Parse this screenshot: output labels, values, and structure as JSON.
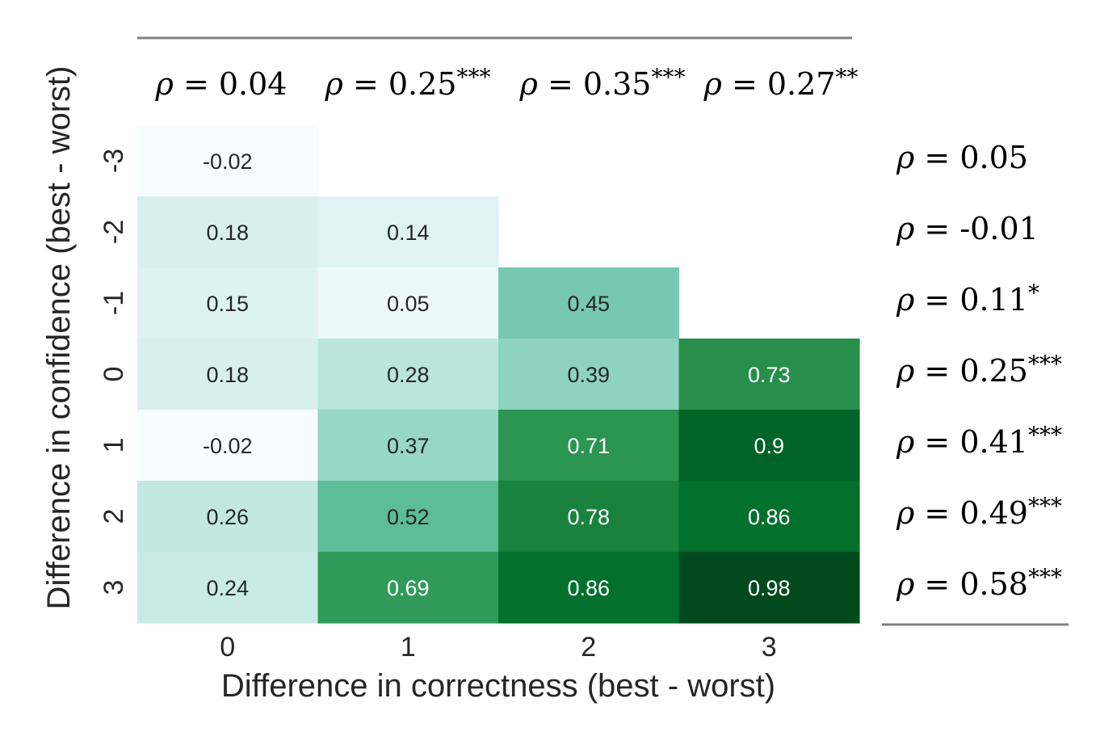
{
  "chart_data": {
    "type": "heatmap",
    "xlabel": "Difference in correctness (best - worst)",
    "ylabel": "Difference in confidence (best - worst)",
    "x_categories": [
      "0",
      "1",
      "2",
      "3"
    ],
    "y_categories": [
      "-3",
      "-2",
      "-1",
      "0",
      "1",
      "2",
      "3"
    ],
    "values": [
      [
        -0.02,
        null,
        null,
        null
      ],
      [
        0.18,
        0.14,
        null,
        null
      ],
      [
        0.15,
        0.05,
        0.45,
        null
      ],
      [
        0.18,
        0.28,
        0.39,
        0.73
      ],
      [
        -0.02,
        0.37,
        0.71,
        0.9
      ],
      [
        0.26,
        0.52,
        0.78,
        0.86
      ],
      [
        0.24,
        0.69,
        0.86,
        0.98
      ]
    ],
    "cell_labels": [
      [
        "-0.02",
        null,
        null,
        null
      ],
      [
        "0.18",
        "0.14",
        null,
        null
      ],
      [
        "0.15",
        "0.05",
        "0.45",
        null
      ],
      [
        "0.18",
        "0.28",
        "0.39",
        "0.73"
      ],
      [
        "-0.02",
        "0.37",
        "0.71",
        "0.9"
      ],
      [
        "0.26",
        "0.52",
        "0.78",
        "0.86"
      ],
      [
        "0.24",
        "0.69",
        "0.86",
        "0.98"
      ]
    ],
    "value_range": [
      -0.02,
      1.0
    ],
    "colormap": "BuGn",
    "column_correlations": [
      {
        "rho": "0.04",
        "stars": ""
      },
      {
        "rho": "0.25",
        "stars": "***"
      },
      {
        "rho": "0.35",
        "stars": "***"
      },
      {
        "rho": "0.27",
        "stars": "**"
      }
    ],
    "row_correlations": [
      {
        "rho": "0.05",
        "stars": ""
      },
      {
        "rho": "-0.01",
        "stars": ""
      },
      {
        "rho": "0.11",
        "stars": "*"
      },
      {
        "rho": "0.25",
        "stars": "***"
      },
      {
        "rho": "0.41",
        "stars": "***"
      },
      {
        "rho": "0.49",
        "stars": "***"
      },
      {
        "rho": "0.58",
        "stars": "***"
      }
    ],
    "rho_prefix": "ρ",
    "rho_equals": "="
  }
}
